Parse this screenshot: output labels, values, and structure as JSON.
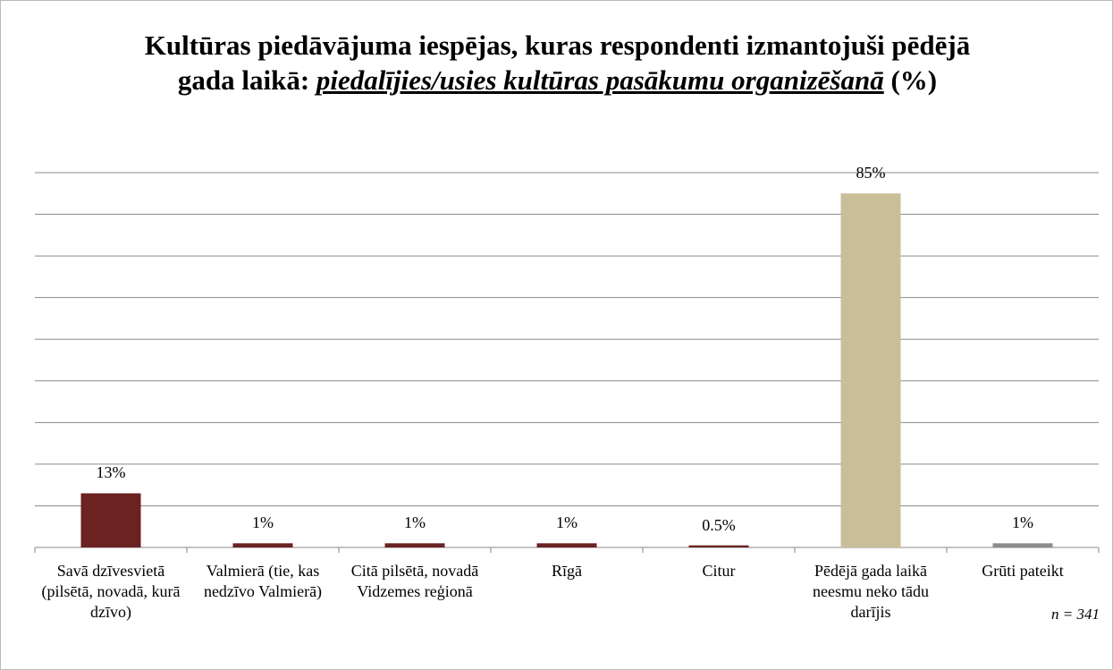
{
  "chart_data": {
    "type": "bar",
    "title": {
      "lead": "Kultūras piedāvājuma iespējas, kuras respondenti izmantojuši pēdējā gada laikā:",
      "emphasis": "piedalījies/usies kultūras pasākumu organizēšanā",
      "tail": "(%)"
    },
    "categories": [
      "Savā dzīvesvietā (pilsētā, novadā, kurā dzīvo)",
      "Valmierā (tie, kas nedzīvo Valmierā)",
      "Citā pilsētā, novadā Vidzemes reģionā",
      "Rīgā",
      "Citur",
      "Pēdējā gada laikā neesmu neko tādu darījis",
      "Grūti pateikt"
    ],
    "values": [
      13,
      1,
      1,
      1,
      0.5,
      85,
      1
    ],
    "value_labels": [
      "13%",
      "1%",
      "1%",
      "1%",
      "0.5%",
      "85%",
      "1%"
    ],
    "colors": [
      "#6b2222",
      "#6b2222",
      "#6b2222",
      "#6b2222",
      "#6b2222",
      "#c8bf99",
      "#8c8c8c"
    ],
    "ylim": [
      0,
      90
    ],
    "yticks": [
      0,
      10,
      20,
      30,
      40,
      50,
      60,
      70,
      80,
      90
    ],
    "grid": true,
    "note": "n = 341"
  }
}
